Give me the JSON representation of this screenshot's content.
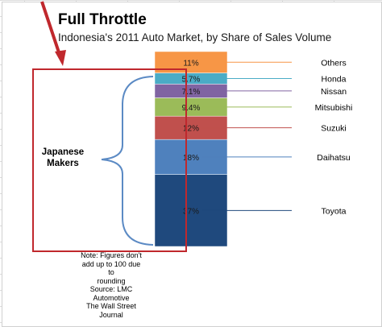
{
  "chart_data": {
    "type": "bar",
    "subtype": "100% stacked single column",
    "title": "Full Throttle",
    "subtitle": "Indonesia's 2011 Auto Market, by Share of Sales Volume",
    "series": [
      {
        "name": "Toyota",
        "value": 37,
        "label": "37%",
        "color": "#1f497d"
      },
      {
        "name": "Daihatsu",
        "value": 18,
        "label": "18%",
        "color": "#4f81bd"
      },
      {
        "name": "Suzuki",
        "value": 12,
        "label": "12%",
        "color": "#c0504d"
      },
      {
        "name": "Mitsubishi",
        "value": 9.4,
        "label": "9.4%",
        "color": "#9bbb59"
      },
      {
        "name": "Nissan",
        "value": 7.1,
        "label": "7.1%",
        "color": "#8064a2"
      },
      {
        "name": "Honda",
        "value": 5.7,
        "label": "5.7%",
        "color": "#4bacc6"
      },
      {
        "name": "Others",
        "value": 11,
        "label": "11%",
        "color": "#f79646"
      }
    ],
    "group_label": [
      "Japanese",
      "Makers"
    ],
    "note": [
      "Note: Figures don't",
      "add up to 100 due to",
      "rounding",
      "Source: LMC",
      "Automotive",
      "The Wall Street",
      "Journal"
    ],
    "legend_placement": "right",
    "annotation_color": "#c0282d"
  }
}
